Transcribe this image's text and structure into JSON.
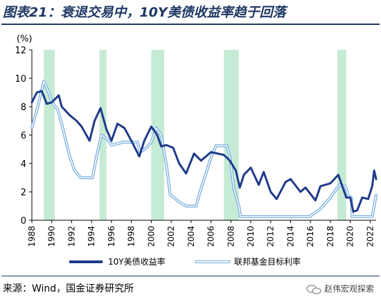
{
  "figure": {
    "title": "图表21：衰退交易中，10Y美债收益率趋于回落",
    "source": "来源：Wind，国金证券研究所",
    "watermark": "赵伟宏观探索"
  },
  "colors": {
    "series1": "#1f3a8a",
    "series2": "#6fa8dc",
    "recession": "#c6ebd5",
    "title": "#1f3864"
  },
  "chart_data": {
    "type": "line",
    "title": "",
    "xlabel": "",
    "ylabel": "(%)",
    "xlim": [
      1988,
      2022.6
    ],
    "ylim": [
      0,
      12
    ],
    "x_ticks": [
      "1988",
      "1990",
      "1992",
      "1994",
      "1996",
      "1998",
      "2000",
      "2002",
      "2004",
      "2006",
      "2008",
      "2010",
      "2012",
      "2014",
      "2016",
      "2018",
      "2020",
      "2022"
    ],
    "y_ticks": [
      "0",
      "2",
      "4",
      "6",
      "8",
      "10",
      "12"
    ],
    "grid": false,
    "legend": "bottom",
    "recession_bands": [
      [
        1989.2,
        1990.3
      ],
      [
        1994.8,
        1995.5
      ],
      [
        2000.0,
        2001.3
      ],
      [
        2007.3,
        2008.8
      ],
      [
        2018.7,
        2019.6
      ]
    ],
    "series": [
      {
        "name": "10Y美债收益率",
        "points": [
          [
            1988.0,
            8.3
          ],
          [
            1988.5,
            9.0
          ],
          [
            1989.0,
            9.1
          ],
          [
            1989.5,
            8.2
          ],
          [
            1990.0,
            8.3
          ],
          [
            1990.7,
            8.8
          ],
          [
            1991.0,
            8.0
          ],
          [
            1991.8,
            7.4
          ],
          [
            1992.5,
            7.0
          ],
          [
            1993.0,
            6.6
          ],
          [
            1993.8,
            5.6
          ],
          [
            1994.3,
            7.0
          ],
          [
            1994.9,
            7.9
          ],
          [
            1995.5,
            6.4
          ],
          [
            1996.0,
            5.6
          ],
          [
            1996.6,
            6.8
          ],
          [
            1997.3,
            6.5
          ],
          [
            1998.0,
            5.6
          ],
          [
            1998.8,
            4.5
          ],
          [
            1999.3,
            5.6
          ],
          [
            2000.0,
            6.6
          ],
          [
            2000.6,
            6.0
          ],
          [
            2001.0,
            5.2
          ],
          [
            2001.5,
            5.3
          ],
          [
            2002.2,
            5.1
          ],
          [
            2002.8,
            4.0
          ],
          [
            2003.5,
            3.3
          ],
          [
            2004.3,
            4.7
          ],
          [
            2005.0,
            4.2
          ],
          [
            2006.0,
            4.8
          ],
          [
            2007.3,
            4.6
          ],
          [
            2007.9,
            4.2
          ],
          [
            2008.5,
            3.5
          ],
          [
            2008.9,
            2.3
          ],
          [
            2009.3,
            3.2
          ],
          [
            2010.0,
            3.7
          ],
          [
            2010.8,
            2.5
          ],
          [
            2011.3,
            3.4
          ],
          [
            2012.0,
            2.0
          ],
          [
            2012.6,
            1.5
          ],
          [
            2013.5,
            2.7
          ],
          [
            2014.0,
            2.9
          ],
          [
            2015.0,
            2.0
          ],
          [
            2015.5,
            2.3
          ],
          [
            2016.5,
            1.4
          ],
          [
            2017.0,
            2.4
          ],
          [
            2018.0,
            2.6
          ],
          [
            2018.8,
            3.2
          ],
          [
            2019.6,
            1.6
          ],
          [
            2020.0,
            1.6
          ],
          [
            2020.3,
            0.6
          ],
          [
            2020.7,
            0.7
          ],
          [
            2021.2,
            1.6
          ],
          [
            2021.8,
            1.5
          ],
          [
            2022.2,
            2.4
          ],
          [
            2022.4,
            3.5
          ],
          [
            2022.6,
            2.9
          ]
        ]
      },
      {
        "name": "联邦基金目标利率",
        "points": [
          [
            1988.0,
            6.5
          ],
          [
            1988.6,
            8.0
          ],
          [
            1989.2,
            9.8
          ],
          [
            1989.7,
            9.0
          ],
          [
            1990.0,
            8.3
          ],
          [
            1990.6,
            7.8
          ],
          [
            1991.0,
            6.8
          ],
          [
            1991.8,
            4.5
          ],
          [
            1992.3,
            3.5
          ],
          [
            1992.9,
            3.0
          ],
          [
            1994.1,
            3.0
          ],
          [
            1994.5,
            4.5
          ],
          [
            1995.0,
            6.0
          ],
          [
            1995.6,
            5.7
          ],
          [
            1996.0,
            5.3
          ],
          [
            1997.2,
            5.5
          ],
          [
            1998.6,
            5.5
          ],
          [
            1998.9,
            4.8
          ],
          [
            1999.5,
            5.1
          ],
          [
            2000.0,
            5.5
          ],
          [
            2000.5,
            6.5
          ],
          [
            2001.0,
            6.0
          ],
          [
            2001.5,
            4.0
          ],
          [
            2001.9,
            1.8
          ],
          [
            2002.9,
            1.25
          ],
          [
            2003.5,
            1.0
          ],
          [
            2004.5,
            1.0
          ],
          [
            2004.9,
            2.0
          ],
          [
            2005.9,
            4.2
          ],
          [
            2006.5,
            5.25
          ],
          [
            2007.6,
            5.25
          ],
          [
            2007.9,
            4.5
          ],
          [
            2008.3,
            2.25
          ],
          [
            2008.8,
            1.0
          ],
          [
            2008.96,
            0.25
          ],
          [
            2015.9,
            0.25
          ],
          [
            2016.9,
            0.75
          ],
          [
            2017.9,
            1.5
          ],
          [
            2018.9,
            2.5
          ],
          [
            2019.5,
            2.4
          ],
          [
            2019.8,
            1.75
          ],
          [
            2020.1,
            1.6
          ],
          [
            2020.2,
            0.25
          ],
          [
            2022.2,
            0.25
          ],
          [
            2022.4,
            1.0
          ],
          [
            2022.6,
            1.75
          ]
        ]
      }
    ]
  },
  "legend": {
    "series1": "10Y美债收益率",
    "series2": "联邦基金目标利率"
  }
}
